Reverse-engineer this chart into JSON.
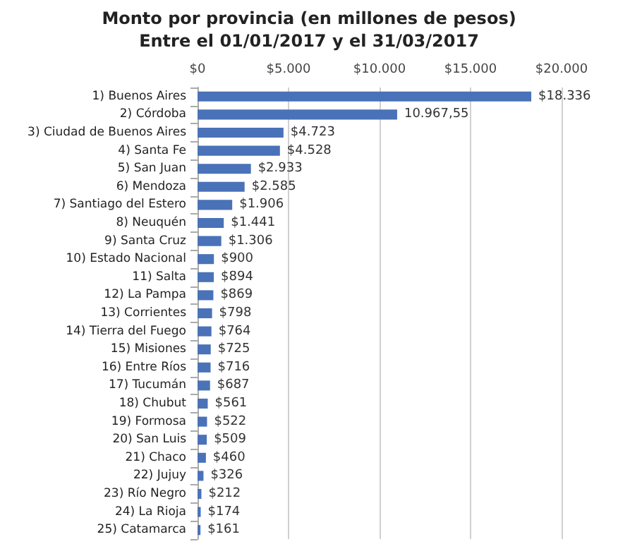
{
  "chart_data": {
    "type": "bar",
    "orientation": "horizontal",
    "title": "Monto por provincia (en millones de pesos)",
    "subtitle": "Entre el 01/01/2017 y el 31/03/2017",
    "categories": [
      "1) Buenos Aires",
      "2) Córdoba",
      "3) Ciudad de Buenos Aires",
      "4) Santa Fe",
      "5) San Juan",
      "6) Mendoza",
      "7) Santiago del Estero",
      "8) Neuquén",
      "9) Santa Cruz",
      "10) Estado Nacional",
      "11) Salta",
      "12) La Pampa",
      "13) Corrientes",
      "14) Tierra del Fuego",
      "15) Misiones",
      "16) Entre Ríos",
      "17) Tucumán",
      "18) Chubut",
      "19) Formosa",
      "20) San Luis",
      "21) Chaco",
      "22) Jujuy",
      "23) Río Negro",
      "24) La Rioja",
      "25) Catamarca"
    ],
    "values": [
      18336,
      10967.55,
      4723,
      4528,
      2933,
      2585,
      1906,
      1441,
      1306,
      900,
      894,
      869,
      798,
      764,
      725,
      716,
      687,
      561,
      522,
      509,
      460,
      326,
      212,
      174,
      161
    ],
    "value_labels": [
      "$18.336",
      "10.967,55",
      "$4.723",
      "$4.528",
      "$2.933",
      "$2.585",
      "$1.906",
      "$1.441",
      "$1.306",
      "$900",
      "$894",
      "$869",
      "$798",
      "$764",
      "$725",
      "$716",
      "$687",
      "$561",
      "$522",
      "$509",
      "$460",
      "$326",
      "$212",
      "$174",
      "$161"
    ],
    "color": "#4a72b8",
    "xlim": [
      0,
      20000
    ],
    "xticks": [
      {
        "value": 0,
        "label": "$0"
      },
      {
        "value": 5000,
        "label": "$5.000"
      },
      {
        "value": 10000,
        "label": "$10.000"
      },
      {
        "value": 15000,
        "label": "$15.000"
      },
      {
        "value": 20000,
        "label": "$20.000"
      }
    ],
    "grid": "x"
  }
}
